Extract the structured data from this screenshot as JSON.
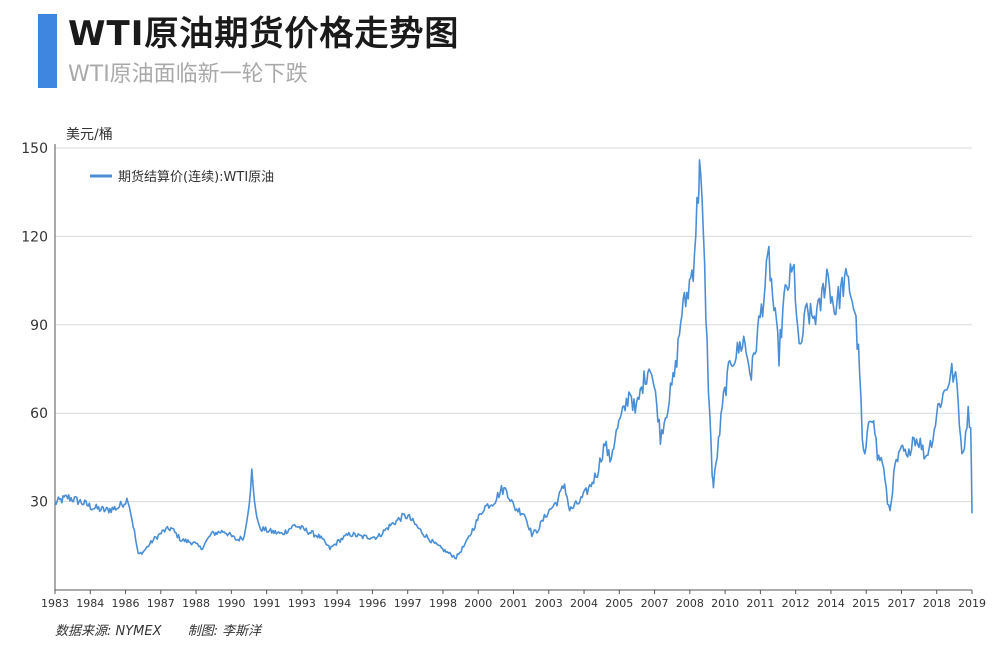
{
  "header": {
    "title": "WTI原油期货价格走势图",
    "subtitle": "WTI原油面临新一轮下跌"
  },
  "footer": {
    "source": "数据来源: NYMEX",
    "author": "制图: 李斯洋"
  },
  "colors": {
    "accent": "#3f86e0",
    "series": "#4a8fd6",
    "grid": "#d9d9d9",
    "axis": "#555555"
  },
  "chart_data": {
    "type": "line",
    "title": "WTI原油期货价格走势图",
    "ylabel": "美元/桶",
    "xlabel": "",
    "ylim": [
      0,
      150
    ],
    "xlim": [
      1983.0,
      2019.35
    ],
    "yticks": [
      30,
      60,
      90,
      120,
      150
    ],
    "xticks": [
      "1983",
      "1984",
      "1986",
      "1987",
      "1988",
      "1990",
      "1991",
      "1993",
      "1994",
      "1996",
      "1997",
      "1998",
      "2000",
      "2001",
      "2003",
      "2004",
      "2005",
      "2007",
      "2008",
      "2010",
      "2011",
      "2012",
      "2014",
      "2015",
      "2017",
      "2018",
      "2019"
    ],
    "grid": "horizontal",
    "legend_position": "top-left",
    "series": [
      {
        "name": "期货结算价(连续):WTI原油",
        "points": [
          [
            1983.0,
            29.5
          ],
          [
            1983.5,
            31.5
          ],
          [
            1984.0,
            30
          ],
          [
            1984.5,
            28
          ],
          [
            1985.0,
            27
          ],
          [
            1985.5,
            28
          ],
          [
            1985.9,
            31
          ],
          [
            1986.1,
            22
          ],
          [
            1986.3,
            12
          ],
          [
            1986.5,
            13
          ],
          [
            1986.9,
            17
          ],
          [
            1987.3,
            20
          ],
          [
            1987.6,
            21
          ],
          [
            1988.0,
            17
          ],
          [
            1988.5,
            16
          ],
          [
            1988.8,
            14
          ],
          [
            1989.2,
            19
          ],
          [
            1989.7,
            20
          ],
          [
            1990.2,
            17
          ],
          [
            1990.5,
            18
          ],
          [
            1990.7,
            30
          ],
          [
            1990.8,
            40
          ],
          [
            1990.9,
            30
          ],
          [
            1991.1,
            21
          ],
          [
            1991.5,
            20
          ],
          [
            1992.0,
            19
          ],
          [
            1992.5,
            22
          ],
          [
            1993.0,
            20
          ],
          [
            1993.5,
            18
          ],
          [
            1993.9,
            14
          ],
          [
            1994.3,
            17
          ],
          [
            1994.7,
            19
          ],
          [
            1995.2,
            18
          ],
          [
            1995.8,
            18
          ],
          [
            1996.3,
            22
          ],
          [
            1996.8,
            25
          ],
          [
            1997.0,
            25
          ],
          [
            1997.5,
            20
          ],
          [
            1998.0,
            16
          ],
          [
            1998.5,
            13
          ],
          [
            1998.9,
            11
          ],
          [
            1999.3,
            16
          ],
          [
            1999.7,
            23
          ],
          [
            2000.0,
            28
          ],
          [
            2000.4,
            30
          ],
          [
            2000.7,
            34
          ],
          [
            2000.9,
            34
          ],
          [
            2001.2,
            28
          ],
          [
            2001.6,
            26
          ],
          [
            2001.9,
            19
          ],
          [
            2002.1,
            20
          ],
          [
            2002.5,
            26
          ],
          [
            2002.9,
            30
          ],
          [
            2003.2,
            36
          ],
          [
            2003.4,
            27
          ],
          [
            2003.8,
            30
          ],
          [
            2004.2,
            35
          ],
          [
            2004.5,
            40
          ],
          [
            2004.8,
            50
          ],
          [
            2005.0,
            44
          ],
          [
            2005.3,
            55
          ],
          [
            2005.6,
            62
          ],
          [
            2005.8,
            68
          ],
          [
            2006.0,
            60
          ],
          [
            2006.3,
            70
          ],
          [
            2006.6,
            77
          ],
          [
            2006.9,
            60
          ],
          [
            2007.0,
            52
          ],
          [
            2007.3,
            63
          ],
          [
            2007.6,
            75
          ],
          [
            2007.85,
            95
          ],
          [
            2008.0,
            98
          ],
          [
            2008.3,
            110
          ],
          [
            2008.5,
            135
          ],
          [
            2008.55,
            145
          ],
          [
            2008.7,
            120
          ],
          [
            2008.9,
            70
          ],
          [
            2009.05,
            40
          ],
          [
            2009.1,
            35
          ],
          [
            2009.3,
            50
          ],
          [
            2009.5,
            65
          ],
          [
            2009.8,
            78
          ],
          [
            2010.0,
            80
          ],
          [
            2010.3,
            85
          ],
          [
            2010.6,
            73
          ],
          [
            2010.9,
            90
          ],
          [
            2011.1,
            100
          ],
          [
            2011.3,
            113
          ],
          [
            2011.5,
            95
          ],
          [
            2011.7,
            80
          ],
          [
            2011.9,
            98
          ],
          [
            2012.1,
            105
          ],
          [
            2012.3,
            108
          ],
          [
            2012.5,
            80
          ],
          [
            2012.8,
            95
          ],
          [
            2013.0,
            92
          ],
          [
            2013.3,
            95
          ],
          [
            2013.6,
            108
          ],
          [
            2013.9,
            95
          ],
          [
            2014.1,
            100
          ],
          [
            2014.3,
            105
          ],
          [
            2014.5,
            103
          ],
          [
            2014.7,
            95
          ],
          [
            2014.9,
            75
          ],
          [
            2015.0,
            50
          ],
          [
            2015.1,
            45
          ],
          [
            2015.3,
            58
          ],
          [
            2015.45,
            60
          ],
          [
            2015.6,
            45
          ],
          [
            2015.8,
            44
          ],
          [
            2016.0,
            30
          ],
          [
            2016.1,
            27
          ],
          [
            2016.3,
            42
          ],
          [
            2016.6,
            48
          ],
          [
            2016.8,
            44
          ],
          [
            2017.0,
            52
          ],
          [
            2017.3,
            50
          ],
          [
            2017.5,
            45
          ],
          [
            2017.8,
            52
          ],
          [
            2018.0,
            62
          ],
          [
            2018.3,
            68
          ],
          [
            2018.55,
            74
          ],
          [
            2018.75,
            70
          ],
          [
            2018.9,
            52
          ],
          [
            2019.0,
            45
          ],
          [
            2019.1,
            55
          ],
          [
            2019.2,
            60
          ],
          [
            2019.3,
            56
          ],
          [
            2019.35,
            26
          ]
        ]
      }
    ]
  }
}
